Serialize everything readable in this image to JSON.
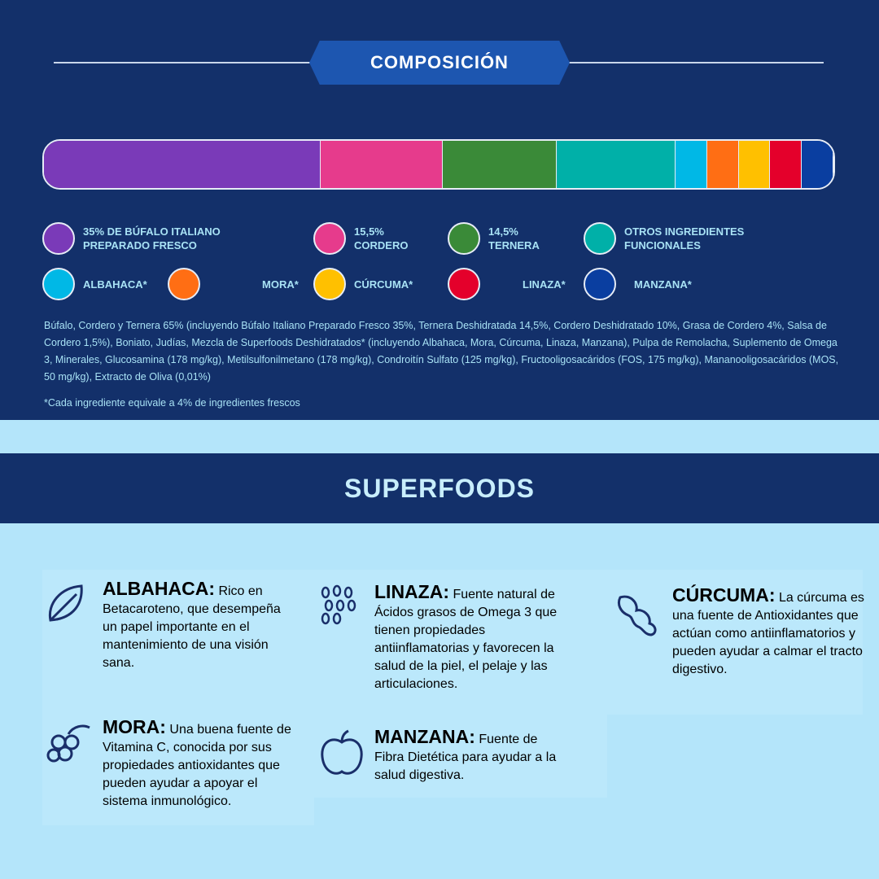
{
  "composicion": {
    "title": "COMPOSICIÓN",
    "segments": [
      {
        "label": "35% DE BÚFALO ITALIANO PREPARADO FRESCO",
        "l1": "35% DE BÚFALO ITALIANO",
        "l2": "PREPARADO FRESCO",
        "value": 35,
        "color": "#7a3ab8"
      },
      {
        "label": "15,5% CORDERO",
        "l1": "15,5%",
        "l2": "CORDERO",
        "value": 15.5,
        "color": "#e63b8c"
      },
      {
        "label": "14,5% TERNERA",
        "l1": "14,5%",
        "l2": "TERNERA",
        "value": 14.5,
        "color": "#3a8a38"
      },
      {
        "label": "OTROS INGREDIENTES FUNCIONALES",
        "l1": "OTROS INGREDIENTES",
        "l2": "FUNCIONALES",
        "value": 15,
        "color": "#00b0a8"
      },
      {
        "label": "ALBAHACA*",
        "l1": "ALBAHACA*",
        "l2": "",
        "value": 4,
        "color": "#00b8e6"
      },
      {
        "label": "MORA*",
        "l1": "MORA*",
        "l2": "",
        "value": 4,
        "color": "#ff6e14"
      },
      {
        "label": "CÚRCUMA*",
        "l1": "CÚRCUMA*",
        "l2": "",
        "value": 4,
        "color": "#ffc000"
      },
      {
        "label": "LINAZA*",
        "l1": "LINAZA*",
        "l2": "",
        "value": 4,
        "color": "#e4002b"
      },
      {
        "label": "MANZANA*",
        "l1": "MANZANA*",
        "l2": "",
        "value": 4,
        "color": "#0a3ea0"
      }
    ],
    "ingredients": "Búfalo, Cordero y Ternera 65% (incluyendo Búfalo Italiano Preparado Fresco 35%, Ternera Deshidratada 14,5%, Cordero Deshidratado 10%, Grasa de Cordero 4%, Salsa de Cordero 1,5%), Boniato, Judías, Mezcla de Superfoods Deshidratados* (incluyendo Albahaca, Mora, Cúrcuma, Linaza, Manzana), Pulpa de Remolacha, Suplemento de Omega 3, Minerales, Glucosamina (178 mg/kg), Metilsulfonilmetano (178 mg/kg), Condroitín Sulfato (125 mg/kg), Fructooligosacáridos (FOS, 175 mg/kg), Mananooligosacáridos (MOS, 50 mg/kg), Extracto de Oliva (0,01%)",
    "note": "*Cada ingrediente equivale a 4% de ingredientes frescos"
  },
  "superfoods": {
    "title": "SUPERFOODS",
    "items": [
      {
        "name": "ALBAHACA:",
        "text": "Rico en Betacaroteno, que desempeña un papel importante en el mantenimiento de una visión sana.",
        "icon": "basil-leaf-icon"
      },
      {
        "name": "MORA:",
        "text": "Una buena fuente de Vitamina C, conocida por sus propiedades antioxidantes que pueden ayudar a apoyar el sistema inmunológico.",
        "icon": "blackberry-icon"
      },
      {
        "name": "LINAZA:",
        "text": "Fuente natural de Ácidos grasos de Omega 3 que tienen propiedades antiinflamatorias y favorecen la salud de la piel, el pelaje y las articulaciones.",
        "icon": "flax-seeds-icon"
      },
      {
        "name": "MANZANA:",
        "text": "Fuente de Fibra Dietética para ayudar a la salud digestiva.",
        "icon": "apple-icon"
      },
      {
        "name": "CÚRCUMA:",
        "text": "La cúrcuma es una fuente de Antioxidantes que actúan como antiinflamatorios y pueden ayudar a calmar el tracto digestivo.",
        "icon": "turmeric-root-icon"
      }
    ]
  }
}
